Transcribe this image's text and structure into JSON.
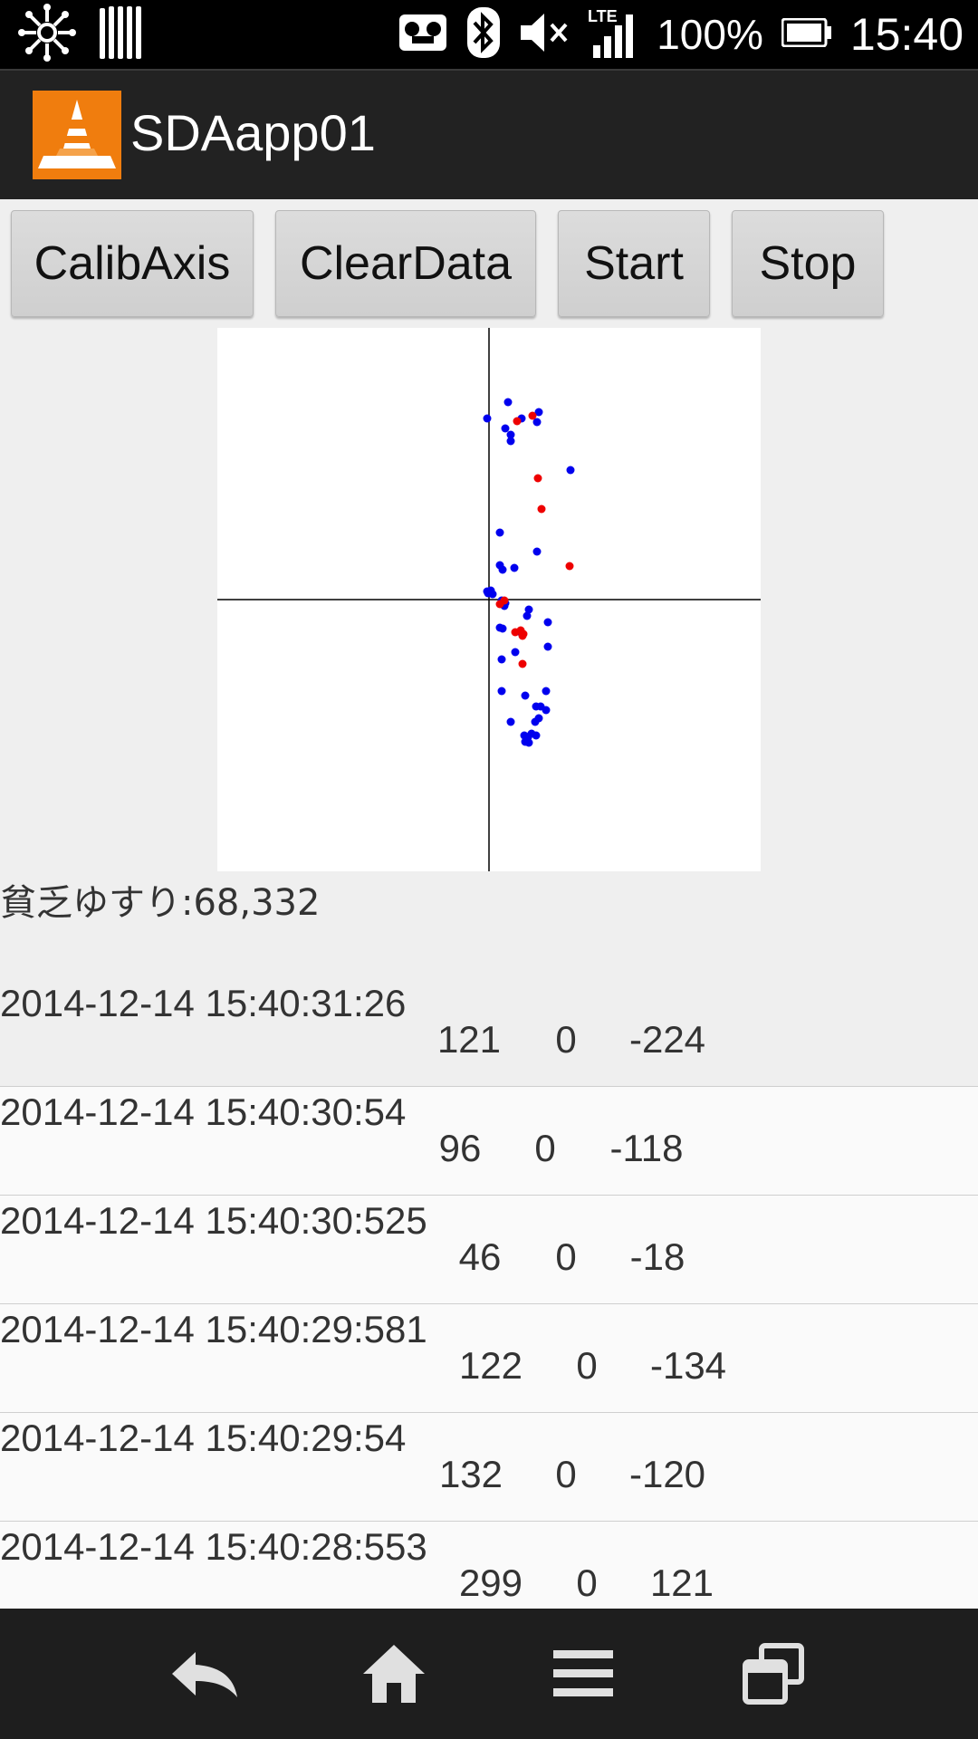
{
  "status_bar": {
    "battery_percent": "100%",
    "time": "15:40",
    "icons": [
      "network-icon",
      "barcode-icon",
      "voicemail-icon",
      "bluetooth-icon",
      "mute-icon",
      "lte-signal-icon",
      "battery-icon"
    ]
  },
  "action_bar": {
    "title": "SDAapp01",
    "icon": "vlc-cone-icon",
    "icon_color": "#f07d0e"
  },
  "buttons": {
    "calib": "CalibAxis",
    "clear": "ClearData",
    "start": "Start",
    "stop": "Stop"
  },
  "plot": {
    "type": "scatter",
    "xlim": [
      -300,
      300
    ],
    "ylim": [
      -300,
      300
    ],
    "grid": false,
    "colors": {
      "blue": "#0000ee",
      "red": "#ee0000",
      "axis": "#000000"
    },
    "blue_points": [
      [
        21,
        218
      ],
      [
        55,
        207
      ],
      [
        -2,
        200
      ],
      [
        53,
        196
      ],
      [
        18,
        189
      ],
      [
        36,
        200
      ],
      [
        24,
        182
      ],
      [
        24,
        175
      ],
      [
        90,
        143
      ],
      [
        12,
        74
      ],
      [
        53,
        53
      ],
      [
        12,
        38
      ],
      [
        28,
        35
      ],
      [
        15,
        33
      ],
      [
        2,
        10
      ],
      [
        -2,
        9
      ],
      [
        -1,
        7
      ],
      [
        4,
        6
      ],
      [
        14,
        -1
      ],
      [
        44,
        -11
      ],
      [
        18,
        -4
      ],
      [
        17,
        -7
      ],
      [
        42,
        -18
      ],
      [
        65,
        -25
      ],
      [
        12,
        -31
      ],
      [
        35,
        -36
      ],
      [
        15,
        -32
      ],
      [
        65,
        -52
      ],
      [
        29,
        -58
      ],
      [
        14,
        -66
      ],
      [
        63,
        -101
      ],
      [
        40,
        -106
      ],
      [
        14,
        -101
      ],
      [
        63,
        -122
      ],
      [
        52,
        -118
      ],
      [
        57,
        -118
      ],
      [
        51,
        -135
      ],
      [
        24,
        -135
      ],
      [
        55,
        -131
      ],
      [
        52,
        -150
      ],
      [
        47,
        -148
      ],
      [
        43,
        -152
      ],
      [
        39,
        -150
      ],
      [
        40,
        -157
      ],
      [
        44,
        -158
      ]
    ],
    "red_points": [
      [
        48,
        203
      ],
      [
        31,
        197
      ],
      [
        54,
        134
      ],
      [
        58,
        100
      ],
      [
        89,
        37
      ],
      [
        12,
        -5
      ],
      [
        17,
        -1
      ],
      [
        29,
        -36
      ],
      [
        38,
        -38
      ],
      [
        37,
        -40
      ],
      [
        35,
        -34
      ],
      [
        37,
        -71
      ]
    ]
  },
  "summary": "貧乏ゆすり:68,332",
  "log": [
    {
      "time": "2014-12-14 15:40:31:26",
      "x": "121",
      "y": "0",
      "z": "-224"
    },
    {
      "time": "2014-12-14 15:40:30:54",
      "x": "96",
      "y": "0",
      "z": "-118"
    },
    {
      "time": "2014-12-14 15:40:30:525",
      "x": "46",
      "y": "0",
      "z": "-18"
    },
    {
      "time": "2014-12-14 15:40:29:581",
      "x": "122",
      "y": "0",
      "z": "-134"
    },
    {
      "time": "2014-12-14 15:40:29:54",
      "x": "132",
      "y": "0",
      "z": "-120"
    },
    {
      "time": "2014-12-14 15:40:28:553",
      "x": "299",
      "y": "0",
      "z": "121"
    }
  ],
  "nav_bar": {
    "icons": [
      "back-icon",
      "home-icon",
      "menu-icon",
      "recent-apps-icon"
    ]
  }
}
